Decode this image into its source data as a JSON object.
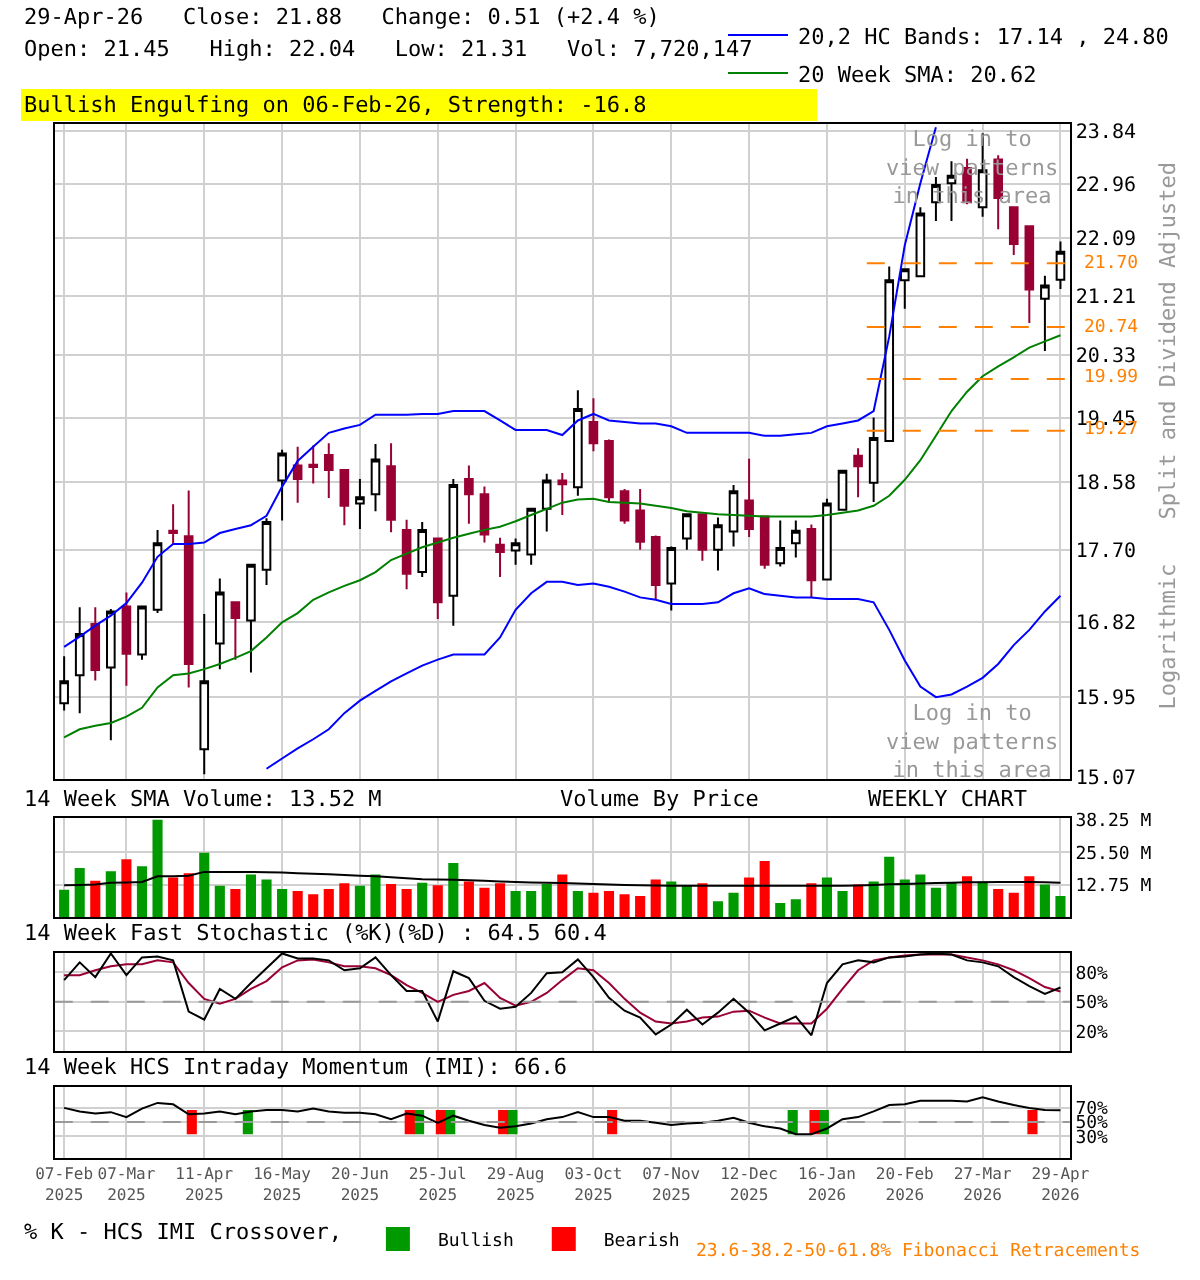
{
  "chart_data": [
    {
      "type": "candlestick",
      "title": "29-Apr-26   Close: 21.88   Change: 0.51 (+2.4 %)",
      "subtitle": "Open: 21.45   High: 22.04   Low: 21.31   Vol: 7,720,147",
      "categories": [
        null,
        null,
        null,
        null,
        null,
        null,
        null,
        null,
        null,
        null,
        null,
        null,
        null,
        null,
        null,
        null,
        null,
        null,
        null,
        null,
        null,
        null,
        null,
        null,
        null,
        null,
        null,
        null,
        null,
        null,
        null,
        null,
        null,
        null,
        null,
        null,
        null,
        null,
        null,
        null,
        null,
        null,
        null,
        null,
        null,
        null,
        null,
        null,
        null,
        null,
        null,
        null,
        null,
        null,
        null,
        null,
        null,
        null,
        null,
        null,
        null,
        null,
        null,
        null,
        null
      ],
      "ohlc": [
        [
          15.88,
          16.42,
          15.8,
          16.13
        ],
        [
          16.2,
          17.0,
          15.77,
          16.68
        ],
        [
          16.8,
          17.0,
          16.14,
          16.26
        ],
        [
          16.29,
          16.98,
          15.47,
          16.95
        ],
        [
          17.01,
          17.18,
          16.08,
          16.45
        ],
        [
          16.44,
          17.01,
          16.38,
          17.01
        ],
        [
          16.97,
          17.96,
          16.93,
          17.79
        ],
        [
          17.95,
          18.29,
          17.78,
          17.92
        ],
        [
          17.88,
          18.47,
          16.06,
          16.33
        ],
        [
          15.37,
          16.92,
          15.1,
          16.13
        ],
        [
          16.57,
          17.35,
          16.27,
          17.18
        ],
        [
          17.06,
          17.06,
          16.38,
          16.87
        ],
        [
          16.84,
          17.52,
          16.23,
          17.52
        ],
        [
          17.46,
          18.11,
          17.27,
          18.06
        ],
        [
          18.6,
          19.01,
          18.08,
          18.96
        ],
        [
          18.8,
          19.05,
          18.31,
          18.62
        ],
        [
          18.81,
          19.07,
          18.56,
          18.78
        ],
        [
          18.94,
          19.1,
          18.37,
          18.74
        ],
        [
          18.74,
          18.74,
          18.02,
          18.27
        ],
        [
          18.3,
          18.62,
          17.97,
          18.38
        ],
        [
          18.42,
          19.09,
          18.2,
          18.88
        ],
        [
          18.79,
          19.1,
          17.93,
          18.09
        ],
        [
          17.96,
          18.09,
          17.22,
          17.41
        ],
        [
          17.43,
          18.06,
          17.37,
          17.96
        ],
        [
          17.85,
          17.85,
          16.86,
          17.06
        ],
        [
          17.14,
          18.62,
          16.78,
          18.54
        ],
        [
          18.62,
          18.8,
          18.04,
          18.42
        ],
        [
          18.42,
          18.52,
          17.8,
          17.9
        ],
        [
          17.77,
          17.86,
          17.37,
          17.68
        ],
        [
          17.7,
          17.85,
          17.52,
          17.79
        ],
        [
          17.65,
          18.23,
          17.52,
          18.23
        ],
        [
          18.23,
          18.69,
          17.94,
          18.6
        ],
        [
          18.6,
          18.7,
          18.15,
          18.55
        ],
        [
          18.51,
          19.83,
          18.4,
          19.57
        ],
        [
          19.39,
          19.72,
          18.99,
          19.1
        ],
        [
          19.13,
          19.15,
          18.32,
          18.38
        ],
        [
          18.46,
          18.49,
          18.04,
          18.08
        ],
        [
          18.21,
          18.49,
          17.71,
          17.81
        ],
        [
          17.87,
          17.89,
          17.1,
          17.27
        ],
        [
          17.29,
          17.75,
          16.96,
          17.73
        ],
        [
          17.85,
          18.16,
          17.71,
          18.16
        ],
        [
          18.16,
          18.16,
          17.57,
          17.71
        ],
        [
          17.71,
          18.12,
          17.45,
          18.02
        ],
        [
          17.94,
          18.54,
          17.75,
          18.46
        ],
        [
          18.34,
          18.89,
          17.87,
          17.97
        ],
        [
          18.13,
          18.13,
          17.47,
          17.52
        ],
        [
          17.54,
          18.08,
          17.5,
          17.73
        ],
        [
          17.79,
          18.08,
          17.61,
          17.95
        ],
        [
          17.97,
          18.03,
          17.12,
          17.33
        ],
        [
          17.34,
          18.36,
          17.34,
          18.3
        ],
        [
          18.22,
          18.73,
          18.22,
          18.73
        ],
        [
          18.93,
          19.03,
          18.38,
          18.79
        ],
        [
          18.57,
          19.45,
          18.32,
          19.17
        ],
        [
          19.13,
          21.65,
          19.13,
          21.44
        ],
        [
          21.44,
          21.61,
          21.01,
          21.61
        ],
        [
          21.5,
          22.58,
          21.5,
          22.48
        ],
        [
          22.66,
          23.07,
          22.36,
          22.94
        ],
        [
          22.97,
          23.33,
          22.36,
          23.09
        ],
        [
          23.22,
          23.37,
          22.63,
          22.66
        ],
        [
          22.58,
          23.8,
          22.43,
          23.18
        ],
        [
          23.36,
          23.43,
          22.23,
          22.73
        ],
        [
          22.58,
          22.58,
          21.83,
          22.0
        ],
        [
          22.28,
          22.28,
          20.8,
          21.3
        ],
        [
          21.16,
          21.51,
          20.39,
          21.36
        ],
        [
          21.45,
          22.04,
          21.31,
          21.88
        ]
      ],
      "series": [
        {
          "type": "line",
          "name": "20,2 HC Bands: 17.14 , 24.80",
          "color": "#0000ff",
          "values": [
            16.53,
            16.65,
            16.78,
            16.9,
            17.05,
            17.3,
            17.62,
            17.78,
            17.78,
            17.8,
            17.92,
            17.97,
            18.02,
            18.14,
            18.52,
            18.86,
            19.05,
            19.24,
            19.3,
            19.35,
            19.49,
            19.49,
            19.49,
            19.5,
            19.5,
            19.54,
            19.54,
            19.54,
            19.41,
            19.28,
            19.28,
            19.28,
            19.21,
            19.41,
            19.5,
            19.41,
            19.39,
            19.37,
            19.37,
            19.33,
            19.24,
            19.24,
            19.24,
            19.24,
            19.24,
            19.2,
            19.2,
            19.22,
            19.24,
            19.33,
            19.37,
            19.41,
            19.54,
            20.6,
            21.98,
            22.97,
            23.9,
            null,
            null,
            null,
            null,
            null,
            null,
            null,
            null
          ]
        },
        {
          "type": "line",
          "color": "#0000ff",
          "values": [
            null,
            null,
            null,
            null,
            null,
            null,
            null,
            null,
            null,
            null,
            null,
            null,
            null,
            15.16,
            15.27,
            15.38,
            15.48,
            15.59,
            15.77,
            15.91,
            16.02,
            16.13,
            16.22,
            16.31,
            16.38,
            16.44,
            16.44,
            16.44,
            16.64,
            16.97,
            17.17,
            17.31,
            17.31,
            17.27,
            17.29,
            17.25,
            17.19,
            17.12,
            17.09,
            17.04,
            17.04,
            17.04,
            17.06,
            17.17,
            17.23,
            17.16,
            17.14,
            17.12,
            17.12,
            17.1,
            17.1,
            17.1,
            17.06,
            16.73,
            16.37,
            16.07,
            15.95,
            15.98,
            16.07,
            16.17,
            16.33,
            16.55,
            16.73,
            16.95,
            17.14
          ]
        },
        {
          "type": "line",
          "name": "20 Week SMA: 20.62",
          "color": "#008000",
          "values": [
            15.5,
            15.59,
            15.63,
            15.66,
            15.73,
            15.83,
            16.06,
            16.2,
            16.22,
            16.27,
            16.33,
            16.4,
            16.48,
            16.64,
            16.82,
            16.93,
            17.09,
            17.18,
            17.26,
            17.33,
            17.43,
            17.58,
            17.66,
            17.74,
            17.8,
            17.86,
            17.91,
            17.96,
            18.0,
            18.07,
            18.15,
            18.23,
            18.31,
            18.35,
            18.36,
            18.32,
            18.31,
            18.3,
            18.27,
            18.24,
            18.2,
            18.18,
            18.16,
            18.15,
            18.14,
            18.13,
            18.13,
            18.13,
            18.13,
            18.15,
            18.18,
            18.21,
            18.27,
            18.4,
            18.61,
            18.87,
            19.2,
            19.54,
            19.81,
            20.03,
            20.17,
            20.3,
            20.44,
            20.53,
            20.62
          ]
        }
      ],
      "ylim": [
        15.05,
        23.95
      ],
      "yticks": [
        15.07,
        15.95,
        16.82,
        {
          "value": 17.7,
          "label": "17.70"
        },
        18.58,
        19.45,
        20.33,
        21.21,
        22.09,
        22.96,
        23.84
      ],
      "log": true,
      "grid": true,
      "legend": "top right",
      "tick_labels": "y",
      "ref_lines": [
        {
          "axis": "y",
          "value": 21.7,
          "label": "21.70",
          "color": "#ff8000",
          "line_style": "dashed"
        },
        {
          "axis": "y",
          "value": 20.74,
          "label": "20.74",
          "color": "#ff8000",
          "line_style": "dashed"
        },
        {
          "axis": "y",
          "value": 19.99,
          "label": "19.99",
          "color": "#ff8000",
          "line_style": "dashed"
        },
        {
          "axis": "y",
          "value": 19.27,
          "label": "19.27",
          "color": "#ff8000",
          "line_style": "dashed"
        }
      ],
      "annotations": [
        "Bullish Engulfing on 06-Feb-26, Strength: -16.8",
        "Log in to\nview patterns\nin this area",
        "Log in to\nview patterns\nin this area",
        "Split and Dividend Adjusted",
        "Logarithmic"
      ]
    },
    {
      "type": "bar",
      "title": "14 Week SMA Volume: 13.52 M",
      "categories": [
        null,
        null,
        null,
        null,
        null,
        null,
        null,
        null,
        null,
        null,
        null,
        null,
        null,
        null,
        null,
        null,
        null,
        null,
        null,
        null,
        null,
        null,
        null,
        null,
        null,
        null,
        null,
        null,
        null,
        null,
        null,
        null,
        null,
        null,
        null,
        null,
        null,
        null,
        null,
        null,
        null,
        null,
        null,
        null,
        null,
        null,
        null,
        null,
        null,
        null,
        null,
        null,
        null,
        null,
        null,
        null,
        null,
        null,
        null,
        null,
        null,
        null,
        null,
        null,
        null
      ],
      "series": [
        {
          "type": "bar",
          "colors": [
            "#009900",
            "#009900",
            "#ff0000",
            "#009900",
            "#ff0000",
            "#009900",
            "#009900",
            "#ff0000",
            "#ff0000",
            "#009900",
            "#009900",
            "#ff0000",
            "#009900",
            "#009900",
            "#009900",
            "#ff0000",
            "#ff0000",
            "#ff0000",
            "#ff0000",
            "#009900",
            "#009900",
            "#ff0000",
            "#ff0000",
            "#009900",
            "#ff0000",
            "#009900",
            "#ff0000",
            "#ff0000",
            "#ff0000",
            "#009900",
            "#009900",
            "#009900",
            "#ff0000",
            "#009900",
            "#ff0000",
            "#ff0000",
            "#ff0000",
            "#ff0000",
            "#ff0000",
            "#009900",
            "#009900",
            "#ff0000",
            "#009900",
            "#009900",
            "#ff0000",
            "#ff0000",
            "#009900",
            "#009900",
            "#ff0000",
            "#009900",
            "#009900",
            "#ff0000",
            "#009900",
            "#009900",
            "#009900",
            "#009900",
            "#009900",
            "#009900",
            "#ff0000",
            "#009900",
            "#ff0000",
            "#ff0000",
            "#ff0000",
            "#009900",
            "#009900"
          ],
          "values": [
            10.75,
            19.25,
            14.25,
            18,
            22.75,
            20,
            38.25,
            15.5,
            17.25,
            25.25,
            12.25,
            11,
            16.75,
            14.75,
            11,
            10.25,
            9,
            11,
            13.25,
            12.25,
            16.75,
            13,
            11,
            13.5,
            12.5,
            21.25,
            14,
            11.5,
            13.25,
            10.25,
            10.25,
            13,
            16.75,
            10.25,
            9.5,
            10.25,
            9,
            8.25,
            14.75,
            14,
            12.25,
            13.25,
            6.25,
            9.5,
            15.5,
            22,
            5.5,
            7,
            13.25,
            15.5,
            10.25,
            12.75,
            14,
            23.75,
            14.75,
            16.75,
            11.5,
            13.5,
            16,
            14,
            11,
            9.5,
            16,
            12.75,
            8.25
          ]
        },
        {
          "type": "line",
          "color": "#000000",
          "values": [
            12.5,
            12.6,
            12.8,
            13.5,
            13.6,
            13.8,
            16,
            16,
            16.2,
            17.75,
            17.75,
            17.75,
            17.75,
            17.6,
            17.5,
            17.25,
            17,
            16.8,
            16.5,
            16.2,
            16,
            15.6,
            15.2,
            14.9,
            14.75,
            14.7,
            14.5,
            14.3,
            14,
            13.8,
            13.6,
            13.5,
            13.4,
            13.2,
            13,
            12.8,
            12.6,
            12.5,
            12.4,
            12.3,
            12.25,
            12.25,
            12.25,
            12.25,
            12.25,
            12.3,
            12.25,
            12.25,
            12.25,
            12.25,
            12.3,
            12.4,
            12.6,
            12.9,
            13,
            13.2,
            13.4,
            13.5,
            13.7,
            13.7,
            13.75,
            13.75,
            13.75,
            13.7,
            13.52
          ]
        }
      ],
      "ylim": [
        0,
        38.8
      ],
      "yticks": [
        {
          "value": 12.75,
          "label": "12.75 M"
        },
        {
          "value": 25.5,
          "label": "25.50 M"
        },
        {
          "value": 38.25,
          "label": "38.25 M"
        }
      ],
      "grid": true,
      "tick_labels": "y",
      "annotations": [
        "Volume By Price",
        "WEEKLY CHART"
      ]
    },
    {
      "type": "line",
      "title": "14 Week Fast Stochastic (%K)(%D) : 64.5 60.4",
      "categories": [
        null,
        null,
        null,
        null,
        null,
        null,
        null,
        null,
        null,
        null,
        null,
        null,
        null,
        null,
        null,
        null,
        null,
        null,
        null,
        null,
        null,
        null,
        null,
        null,
        null,
        null,
        null,
        null,
        null,
        null,
        null,
        null,
        null,
        null,
        null,
        null,
        null,
        null,
        null,
        null,
        null,
        null,
        null,
        null,
        null,
        null,
        null,
        null,
        null,
        null,
        null,
        null,
        null,
        null,
        null,
        null,
        null,
        null,
        null,
        null,
        null,
        null,
        null,
        null,
        null
      ],
      "series": [
        {
          "color": "#990033",
          "values": [
            77,
            77,
            82,
            86,
            88,
            88,
            92,
            90,
            69,
            53,
            48,
            53,
            63,
            71,
            85,
            92,
            93,
            90,
            86,
            86,
            84,
            77,
            67,
            59,
            50,
            57,
            61,
            69,
            54,
            46,
            50,
            59,
            72,
            84,
            82,
            69,
            53,
            39,
            30,
            28,
            30,
            34,
            35,
            40,
            41,
            34,
            28,
            28,
            28,
            43,
            63,
            82,
            92,
            95,
            97,
            98,
            98,
            98,
            95,
            92,
            88,
            82,
            74,
            65,
            60.4
          ]
        },
        {
          "color": "#000000",
          "values": [
            72,
            90,
            75,
            99,
            77,
            95,
            96,
            92,
            40,
            32,
            63,
            53,
            69,
            84,
            99,
            94,
            94,
            92,
            82,
            84,
            95,
            77,
            61,
            61,
            30,
            81,
            74,
            51,
            43,
            45,
            59,
            79,
            80,
            93,
            75,
            54,
            41,
            34,
            17,
            27,
            42,
            27,
            39,
            53,
            39,
            21,
            28,
            35,
            16,
            69,
            88,
            92,
            90,
            95,
            96,
            98,
            99,
            98,
            92,
            90,
            86,
            75,
            66,
            58,
            64.5
          ]
        }
      ],
      "ylim": [
        0,
        100
      ],
      "yticks": [
        {
          "value": 20,
          "label": "20%"
        },
        {
          "value": 50,
          "label": "50%"
        },
        {
          "value": 80,
          "label": "80%"
        }
      ],
      "grid": true,
      "tick_labels": "y",
      "ref_lines": [
        {
          "axis": "y",
          "value": 50,
          "color": "#999999",
          "line_style": "dashed"
        }
      ]
    },
    {
      "type": "line",
      "title": "14 Week HCS Intraday Momentum (IMI): 66.6",
      "legend_title": "% K - HCS IMI Crossover,",
      "categories": [
        "07-Feb\n2025",
        null,
        null,
        null,
        "07-Mar\n2025",
        null,
        null,
        null,
        null,
        "11-Apr\n2025",
        null,
        null,
        null,
        null,
        "16-May\n2025",
        null,
        null,
        null,
        null,
        "20-Jun\n2025",
        null,
        null,
        null,
        null,
        "25-Jul\n2025",
        null,
        null,
        null,
        null,
        "29-Aug\n2025",
        null,
        null,
        null,
        null,
        "03-Oct\n2025",
        null,
        null,
        null,
        null,
        "07-Nov\n2025",
        null,
        null,
        null,
        null,
        "12-Dec\n2025",
        null,
        null,
        null,
        null,
        "16-Jan\n2026",
        null,
        null,
        null,
        null,
        "20-Feb\n2026",
        null,
        null,
        null,
        null,
        "27-Mar\n2026",
        null,
        null,
        null,
        null,
        "29-Apr\n2026"
      ],
      "series": [
        {
          "type": "bar",
          "name": "Bullish",
          "color": "#009900",
          "base": [
            null,
            null,
            null,
            null,
            null,
            null,
            null,
            null,
            null,
            null,
            null,
            null,
            33,
            null,
            null,
            null,
            null,
            null,
            null,
            null,
            null,
            null,
            null,
            33,
            null,
            33,
            null,
            null,
            null,
            33,
            null,
            null,
            null,
            null,
            null,
            null,
            null,
            null,
            null,
            null,
            null,
            null,
            null,
            null,
            null,
            null,
            null,
            33,
            null,
            33,
            null,
            null,
            null,
            null,
            null,
            null,
            null,
            null,
            null,
            null,
            null,
            null,
            null,
            null,
            null
          ],
          "values": [
            null,
            null,
            null,
            null,
            null,
            null,
            null,
            null,
            null,
            null,
            null,
            null,
            34,
            null,
            null,
            null,
            null,
            null,
            null,
            null,
            null,
            null,
            null,
            34,
            null,
            34,
            null,
            null,
            null,
            34,
            null,
            null,
            null,
            null,
            null,
            null,
            null,
            null,
            null,
            null,
            null,
            null,
            null,
            null,
            null,
            null,
            null,
            34,
            null,
            34,
            null,
            null,
            null,
            null,
            null,
            null,
            null,
            null,
            null,
            null,
            null,
            null,
            null,
            null,
            null
          ]
        },
        {
          "type": "bar",
          "name": "Bearish",
          "color": "#ff0000",
          "base": [
            null,
            null,
            null,
            null,
            null,
            null,
            null,
            null,
            33,
            null,
            null,
            null,
            null,
            null,
            null,
            null,
            null,
            null,
            null,
            null,
            null,
            null,
            33,
            null,
            33,
            null,
            null,
            null,
            33,
            null,
            null,
            null,
            null,
            null,
            null,
            33,
            null,
            null,
            null,
            null,
            null,
            null,
            null,
            null,
            null,
            null,
            null,
            null,
            33,
            null,
            null,
            null,
            null,
            null,
            null,
            null,
            null,
            null,
            null,
            null,
            null,
            null,
            33,
            null,
            null
          ],
          "values": [
            null,
            null,
            null,
            null,
            null,
            null,
            null,
            null,
            34,
            null,
            null,
            null,
            null,
            null,
            null,
            null,
            null,
            null,
            null,
            null,
            null,
            null,
            34,
            null,
            34,
            null,
            null,
            null,
            34,
            null,
            null,
            null,
            null,
            null,
            null,
            34,
            null,
            null,
            null,
            null,
            null,
            null,
            null,
            null,
            null,
            null,
            null,
            null,
            34,
            null,
            null,
            null,
            null,
            null,
            null,
            null,
            null,
            null,
            null,
            null,
            null,
            null,
            34,
            null,
            null
          ]
        },
        {
          "type": "line",
          "color": "#000000",
          "values": [
            70,
            65,
            62,
            64,
            57,
            69,
            77,
            75,
            61,
            62,
            65,
            61,
            65,
            67,
            67,
            65,
            69,
            65,
            63,
            63,
            61,
            54,
            62,
            59,
            49,
            59,
            52,
            46,
            42,
            44,
            48,
            54,
            57,
            64,
            57,
            57,
            52,
            52,
            49,
            46,
            48,
            49,
            52,
            56,
            49,
            44,
            41,
            33,
            33,
            41,
            54,
            57,
            65,
            74,
            75,
            80,
            80,
            80,
            79,
            85,
            79,
            74,
            70,
            67,
            66.6
          ]
        }
      ],
      "ylim": [
        0,
        100
      ],
      "yticks": [
        {
          "value": 30,
          "label": "30%"
        },
        {
          "value": 50,
          "label": "50%"
        },
        {
          "value": 70,
          "label": "70%"
        }
      ],
      "grid": true,
      "legend": "bottom",
      "ref_lines": [
        {
          "axis": "y",
          "value": 50,
          "color": "#999999",
          "line_style": "dashed"
        }
      ],
      "annotations": [
        "23.6-38.2-50-61.8% Fibonacci Retracements"
      ]
    }
  ]
}
